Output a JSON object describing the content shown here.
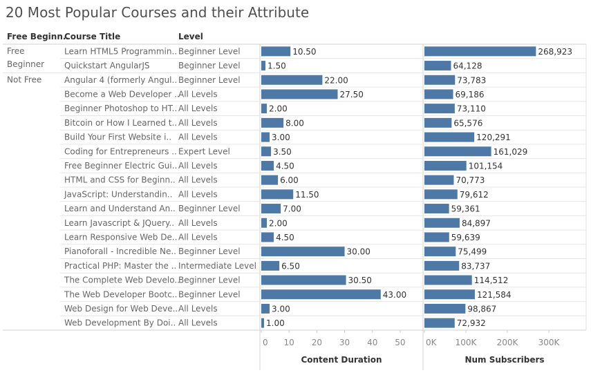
{
  "title": "20 Most Popular Courses and their Attribute",
  "headers": {
    "free": "Free Beginn..",
    "course": "Course Title",
    "level": "Level"
  },
  "groups": [
    {
      "label_lines": [
        "Free",
        "Beginner"
      ],
      "start": 0,
      "count": 2
    },
    {
      "label_lines": [
        "Not Free"
      ],
      "start": 2,
      "count": 18
    }
  ],
  "chart_data": {
    "type": "bar",
    "orientation": "horizontal",
    "categories": [
      "Learn HTML5 Programmin..",
      "Quickstart AngularJS",
      "Angular 4 (formerly Angul..",
      "Become a Web Developer ..",
      "Beginner Photoshop to HT..",
      "Bitcoin or How I Learned t..",
      "Build Your First Website i..",
      "Coding for Entrepreneurs ..",
      "Free Beginner Electric Gui..",
      "HTML and CSS for Beginn..",
      "JavaScript: Understandin..",
      "Learn and Understand An..",
      "Learn Javascript & JQuery..",
      "Learn Responsive Web De..",
      "Pianoforall - Incredible Ne..",
      "Practical PHP: Master the ..",
      "The Complete Web Develo..",
      "The Web Developer Bootc..",
      "Web Design for Web Deve..",
      "Web Development By Doi.."
    ],
    "levels": [
      "Beginner Level",
      "Beginner Level",
      "Beginner Level",
      "All Levels",
      "All Levels",
      "All Levels",
      "All Levels",
      "Expert Level",
      "All Levels",
      "All Levels",
      "All Levels",
      "Beginner Level",
      "All Levels",
      "All Levels",
      "Beginner Level",
      "Intermediate Level",
      "Beginner Level",
      "Beginner Level",
      "All Levels",
      "All Levels"
    ],
    "series": [
      {
        "name": "Content Duration",
        "values": [
          10.5,
          1.5,
          22,
          27.5,
          2,
          8,
          3,
          3.5,
          4.5,
          6,
          11.5,
          7,
          2,
          4.5,
          30,
          6.5,
          30.5,
          43,
          3,
          1
        ],
        "labels": [
          "10.50",
          "1.50",
          "22.00",
          "27.50",
          "2.00",
          "8.00",
          "3.00",
          "3.50",
          "4.50",
          "6.00",
          "11.50",
          "7.00",
          "2.00",
          "4.50",
          "30.00",
          "6.50",
          "30.50",
          "43.00",
          "3.00",
          "1.00"
        ],
        "xlim": [
          0,
          55
        ],
        "ticks": [
          0,
          10,
          20,
          30,
          40,
          50
        ],
        "tick_labels": [
          "0",
          "10",
          "20",
          "30",
          "40",
          "50"
        ]
      },
      {
        "name": "Num Subscribers",
        "values": [
          268923,
          64128,
          73783,
          69186,
          73110,
          65576,
          120291,
          161029,
          101154,
          70773,
          79612,
          59361,
          84897,
          59639,
          75499,
          83737,
          114512,
          121584,
          98867,
          72932
        ],
        "labels": [
          "268,923",
          "64,128",
          "73,783",
          "69,186",
          "73,110",
          "65,576",
          "120,291",
          "161,029",
          "101,154",
          "70,773",
          "79,612",
          "59,361",
          "84,897",
          "59,639",
          "75,499",
          "83,737",
          "114,512",
          "121,584",
          "98,867",
          "72,932"
        ],
        "xlim": [
          0,
          355000
        ],
        "ticks": [
          0,
          100000,
          200000,
          300000
        ],
        "tick_labels": [
          "0K",
          "100K",
          "200K",
          "300K"
        ]
      }
    ],
    "bar_color": "#4e79a7",
    "grid": false
  }
}
